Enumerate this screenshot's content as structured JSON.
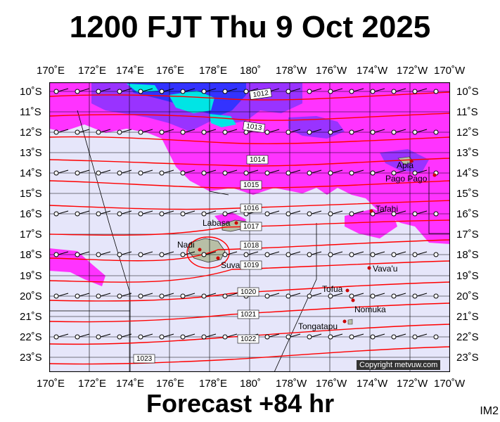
{
  "title": "1200 FJT Thu 9 Oct 2025",
  "footer": "Forecast +84 hr",
  "image_code": "IM2",
  "copyright": "Copyright metvuw.com",
  "lon_labels": [
    "170˚E",
    "172˚E",
    "174˚E",
    "176˚E",
    "178˚E",
    "180˚",
    "178˚W",
    "176˚W",
    "174˚W",
    "172˚W",
    "170˚W"
  ],
  "lat_labels": [
    "10˚S",
    "11˚S",
    "12˚S",
    "13˚S",
    "14˚S",
    "15˚S",
    "16˚S",
    "17˚S",
    "18˚S",
    "19˚S",
    "20˚S",
    "21˚S",
    "22˚S",
    "23˚S"
  ],
  "isobar_labels": [
    "1012",
    "1013",
    "1014",
    "1015",
    "1016",
    "1017",
    "1018",
    "1019",
    "1020",
    "1021",
    "1022",
    "1023"
  ],
  "places": [
    "Apia",
    "Pago Pago",
    "Tafahi",
    "Labasa",
    "Nadi",
    "Suva",
    "Vava'u",
    "Tofua",
    "Nomuka",
    "Tongatapu"
  ],
  "colors": {
    "ocean": "#e6e6fa",
    "rain_light": "#ff33ff",
    "rain_mid": "#9933ff",
    "rain_heavy": "#3333ff",
    "rain_extreme": "#00e5e5",
    "isobar": "#ff0000",
    "land": "#b8bfa6",
    "place_dot": "#cc0000"
  }
}
